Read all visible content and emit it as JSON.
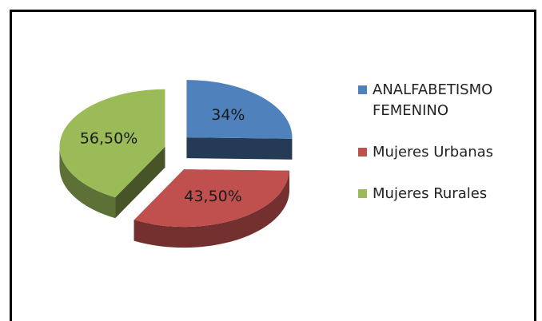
{
  "chart_data": {
    "type": "pie",
    "categories": [
      "ANALFABETISMO FEMENINO",
      "Mujeres Urbanas",
      "Mujeres Rurales"
    ],
    "values": [
      34,
      43.5,
      56.5
    ],
    "value_labels": [
      "34%",
      "43,50%",
      "56,50%"
    ],
    "colors": [
      "#4f81bd",
      "#c0504d",
      "#9bbb59"
    ],
    "legend": "right"
  }
}
